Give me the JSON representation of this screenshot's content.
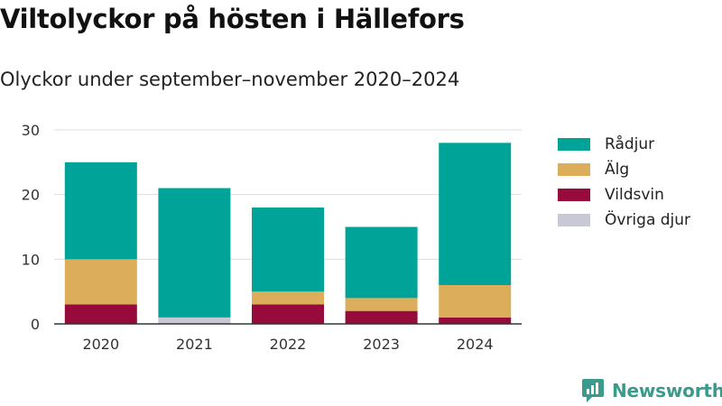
{
  "title": "Viltolyckor på hösten i Hällefors",
  "subtitle": "Olyckor under september–november 2020–2024",
  "brand": "Newsworthy",
  "chart_data": {
    "type": "bar",
    "stacked": true,
    "title": "Viltolyckor på hösten i Hällefors",
    "subtitle": "Olyckor under september–november 2020–2024",
    "xlabel": "",
    "ylabel": "",
    "categories": [
      "2020",
      "2021",
      "2022",
      "2023",
      "2024"
    ],
    "ylim": [
      0,
      30
    ],
    "yticks": [
      0,
      10,
      20,
      30
    ],
    "grid": true,
    "legend_position": "right",
    "series": [
      {
        "name": "Vildsvin",
        "color": "#960a3c",
        "values": [
          3,
          0,
          3,
          2,
          1
        ]
      },
      {
        "name": "Övriga djur",
        "color": "#c9c9d6",
        "values": [
          0,
          1,
          0,
          0,
          0
        ]
      },
      {
        "name": "Älg",
        "color": "#dcad5a",
        "values": [
          7,
          0,
          2,
          2,
          5
        ]
      },
      {
        "name": "Rådjur",
        "color": "#00a398",
        "values": [
          15,
          20,
          13,
          11,
          22
        ]
      }
    ],
    "legend": [
      {
        "name": "Rådjur",
        "color": "#00a398"
      },
      {
        "name": "Älg",
        "color": "#dcad5a"
      },
      {
        "name": "Vildsvin",
        "color": "#960a3c"
      },
      {
        "name": "Övriga djur",
        "color": "#c9c9d6"
      }
    ]
  }
}
